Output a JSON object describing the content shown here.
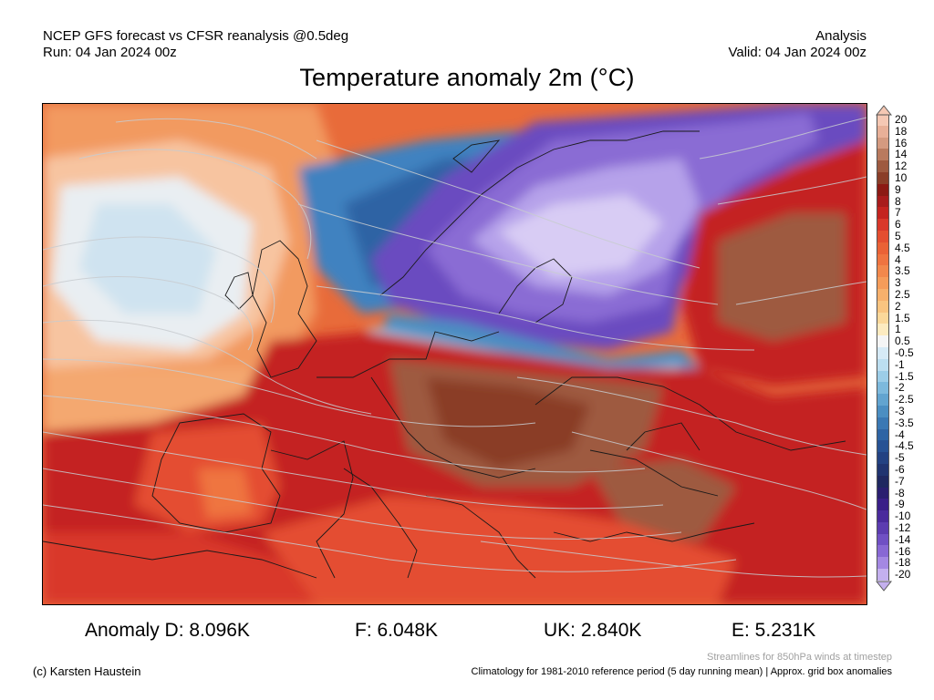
{
  "header": {
    "model_line": "NCEP GFS forecast vs CFSR reanalysis @0.5deg",
    "run_line": "Run: 04 Jan 2024 00z",
    "type_line": "Analysis",
    "valid_line": "Valid: 04 Jan 2024 00z"
  },
  "title": "Temperature anomaly 2m (°C)",
  "colorbar": {
    "levels": [
      {
        "label": "20",
        "color": "#f5c8b4"
      },
      {
        "label": "18",
        "color": "#e8b098"
      },
      {
        "label": "16",
        "color": "#d49a80"
      },
      {
        "label": "14",
        "color": "#b97a5e"
      },
      {
        "label": "12",
        "color": "#9e5a40"
      },
      {
        "label": "10",
        "color": "#8a3e28"
      },
      {
        "label": "9",
        "color": "#8c1a14"
      },
      {
        "label": "8",
        "color": "#a81c1c"
      },
      {
        "label": "7",
        "color": "#c42420"
      },
      {
        "label": "6",
        "color": "#d9382a"
      },
      {
        "label": "5",
        "color": "#e44e30"
      },
      {
        "label": "4.5",
        "color": "#ea6236"
      },
      {
        "label": "4",
        "color": "#ef7440"
      },
      {
        "label": "3.5",
        "color": "#f2884c"
      },
      {
        "label": "3",
        "color": "#f59c5a"
      },
      {
        "label": "2.5",
        "color": "#f7b06c"
      },
      {
        "label": "2",
        "color": "#f9c480"
      },
      {
        "label": "1.5",
        "color": "#fbd89a"
      },
      {
        "label": "1",
        "color": "#fdebc0"
      },
      {
        "label": "0.5",
        "color": "#f5f5f5"
      },
      {
        "label": "-0.5",
        "color": "#d6eaf6"
      },
      {
        "label": "-1",
        "color": "#bcdef0"
      },
      {
        "label": "-1.5",
        "color": "#9ccde8"
      },
      {
        "label": "-2",
        "color": "#7db9dd"
      },
      {
        "label": "-2.5",
        "color": "#62a4d0"
      },
      {
        "label": "-3",
        "color": "#4b8ec2"
      },
      {
        "label": "-3.5",
        "color": "#3a78b4"
      },
      {
        "label": "-4",
        "color": "#2e64a4"
      },
      {
        "label": "-4.5",
        "color": "#275294"
      },
      {
        "label": "-5",
        "color": "#234282"
      },
      {
        "label": "-6",
        "color": "#203470"
      },
      {
        "label": "-7",
        "color": "#1f2860"
      },
      {
        "label": "-8",
        "color": "#2a1f70"
      },
      {
        "label": "-9",
        "color": "#3a1f88"
      },
      {
        "label": "-10",
        "color": "#4a2a9c"
      },
      {
        "label": "-12",
        "color": "#5c3cb0"
      },
      {
        "label": "-14",
        "color": "#7050c4"
      },
      {
        "label": "-16",
        "color": "#8868d4"
      },
      {
        "label": "-18",
        "color": "#a488e2"
      },
      {
        "label": "-20",
        "color": "#c4b0ee"
      }
    ]
  },
  "anomalies": [
    {
      "label": "Anomaly D: 8.096K"
    },
    {
      "label": "F: 6.048K"
    },
    {
      "label": "UK: 2.840K"
    },
    {
      "label": "E: 5.231K"
    }
  ],
  "footer": {
    "credit": "(c) Karsten Haustein",
    "streamline_note": "Streamlines for 850hPa winds at timestep",
    "climatology_note": "Climatology for 1981-2010 reference period (5 day running mean) | Approx. grid box anomalies"
  }
}
